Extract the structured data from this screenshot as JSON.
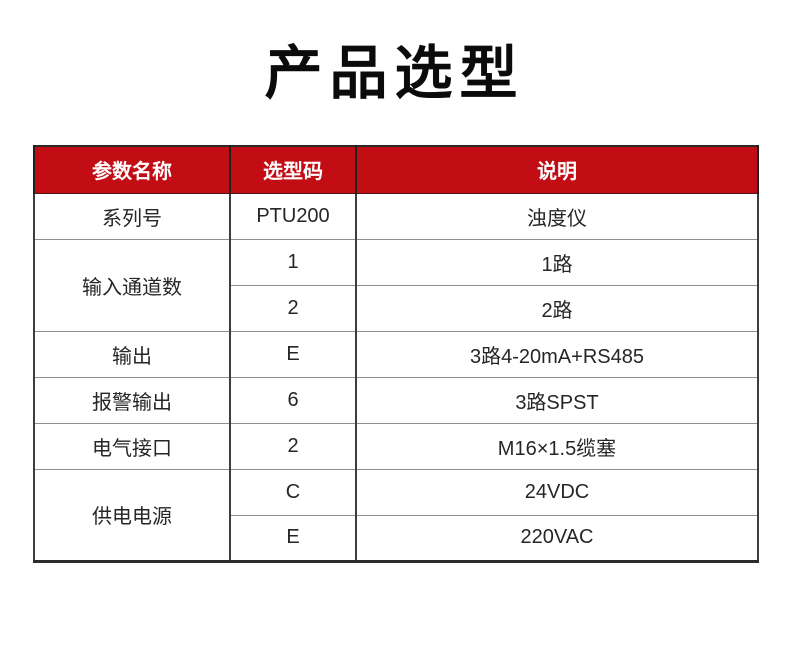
{
  "title": "产品选型",
  "colors": {
    "header_bg": "#c20d14",
    "header_text": "#ffffff",
    "body_text": "#262626",
    "outer_border": "#2b2b2b",
    "grid_horizontal": "#8f8f8f",
    "grid_vertical": "#3d3d3d",
    "page_bg": "#ffffff"
  },
  "table": {
    "headers": [
      "参数名称",
      "选型码",
      "说明"
    ],
    "rows": [
      {
        "param": "系列号",
        "entries": [
          {
            "code": "PTU200",
            "desc": "浊度仪"
          }
        ]
      },
      {
        "param": "输入通道数",
        "entries": [
          {
            "code": "1",
            "desc": "1路"
          },
          {
            "code": "2",
            "desc": "2路"
          }
        ]
      },
      {
        "param": "输出",
        "entries": [
          {
            "code": "E",
            "desc": "3路4-20mA+RS485"
          }
        ]
      },
      {
        "param": "报警输出",
        "entries": [
          {
            "code": "6",
            "desc": "3路SPST"
          }
        ]
      },
      {
        "param": "电气接口",
        "entries": [
          {
            "code": "2",
            "desc": "M16×1.5缆塞"
          }
        ]
      },
      {
        "param": "供电电源",
        "entries": [
          {
            "code": "C",
            "desc": "24VDC"
          },
          {
            "code": "E",
            "desc": "220VAC"
          }
        ]
      }
    ]
  }
}
